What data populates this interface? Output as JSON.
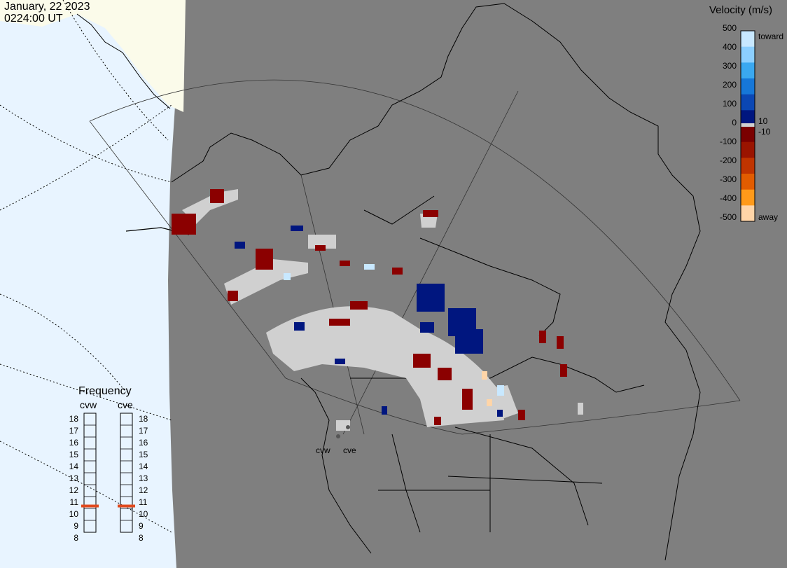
{
  "header": {
    "date": "January, 22 2023",
    "time": "0224:00 UT"
  },
  "velocity_scale": {
    "title": "Velocity (m/s)",
    "ticks": [
      "500",
      "400",
      "300",
      "200",
      "100",
      "0",
      "-100",
      "-200",
      "-300",
      "-400",
      "-500"
    ],
    "toward_label": "toward",
    "away_label": "away",
    "pos_threshold": "10",
    "neg_threshold": "-10",
    "colors": [
      "#c8e8ff",
      "#8ccfff",
      "#3aa8f0",
      "#1677d8",
      "#0b47b4",
      "#00167f",
      "#7a0000",
      "#9a1400",
      "#c03400",
      "#e25c00",
      "#ff9a1a",
      "#ffd5a8"
    ]
  },
  "frequency": {
    "title": "Frequency",
    "radars": [
      "cvw",
      "cve"
    ],
    "scale": [
      "18",
      "17",
      "16",
      "15",
      "14",
      "13",
      "12",
      "11",
      "10",
      "9",
      "8"
    ],
    "current_mhz": [
      11,
      11
    ],
    "marker_color": "#e04a1e"
  },
  "radar_sites": {
    "west": "cvw",
    "east": "cve"
  },
  "map_colors": {
    "background": "#7f7f7f",
    "ocean_day": "#e8f4ff",
    "land_day": "#fbfbea",
    "scatter_gray": "#d0d0d0",
    "toward_dark": "#00167f",
    "away_dark": "#8b0000"
  }
}
